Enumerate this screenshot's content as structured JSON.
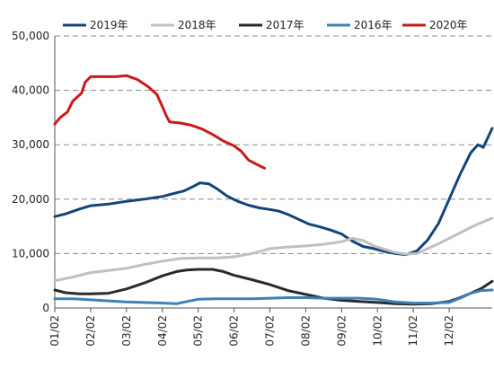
{
  "chart_data": {
    "type": "line",
    "title": "",
    "xlabel": "",
    "ylabel": "",
    "ylim": [
      0,
      50000
    ],
    "yticks": [
      "0",
      "10,000",
      "20,000",
      "30,000",
      "40,000",
      "50,000"
    ],
    "xticks": [
      "01/02",
      "02/02",
      "03/02",
      "04/02",
      "05/02",
      "06/02",
      "07/02",
      "08/02",
      "09/02",
      "10/02",
      "11/02",
      "12/02"
    ],
    "grid": "horizontal-dashed",
    "legend_position": "top",
    "series": [
      {
        "name": "2019年",
        "color": "#14457a",
        "points": [
          [
            0,
            16800
          ],
          [
            0.3,
            17300
          ],
          [
            0.7,
            18200
          ],
          [
            1.0,
            18800
          ],
          [
            1.5,
            19100
          ],
          [
            2.0,
            19600
          ],
          [
            2.5,
            20000
          ],
          [
            3.0,
            20500
          ],
          [
            3.3,
            21000
          ],
          [
            3.6,
            21500
          ],
          [
            3.85,
            22300
          ],
          [
            4.05,
            23000
          ],
          [
            4.3,
            22800
          ],
          [
            4.55,
            21800
          ],
          [
            4.8,
            20600
          ],
          [
            5.1,
            19600
          ],
          [
            5.4,
            18900
          ],
          [
            5.7,
            18400
          ],
          [
            6.0,
            18100
          ],
          [
            6.25,
            17800
          ],
          [
            6.5,
            17200
          ],
          [
            6.8,
            16300
          ],
          [
            7.1,
            15400
          ],
          [
            7.4,
            14900
          ],
          [
            7.7,
            14300
          ],
          [
            8.0,
            13600
          ],
          [
            8.3,
            12300
          ],
          [
            8.6,
            11300
          ],
          [
            8.9,
            10900
          ],
          [
            9.2,
            10400
          ],
          [
            9.5,
            10000
          ],
          [
            9.8,
            9800
          ],
          [
            10.1,
            10500
          ],
          [
            10.4,
            12500
          ],
          [
            10.7,
            15500
          ],
          [
            11.0,
            20000
          ],
          [
            11.3,
            24500
          ],
          [
            11.6,
            28500
          ],
          [
            11.8,
            30000
          ],
          [
            11.95,
            29500
          ],
          [
            12.2,
            33000
          ]
        ]
      },
      {
        "name": "2018年",
        "color": "#c0c0c0",
        "points": [
          [
            0,
            5000
          ],
          [
            0.5,
            5700
          ],
          [
            1.0,
            6500
          ],
          [
            1.5,
            6900
          ],
          [
            2.0,
            7300
          ],
          [
            2.5,
            8000
          ],
          [
            3.0,
            8600
          ],
          [
            3.5,
            9100
          ],
          [
            4.0,
            9200
          ],
          [
            4.5,
            9200
          ],
          [
            5.0,
            9400
          ],
          [
            5.5,
            10000
          ],
          [
            6.0,
            10900
          ],
          [
            6.5,
            11200
          ],
          [
            7.0,
            11400
          ],
          [
            7.5,
            11700
          ],
          [
            8.0,
            12200
          ],
          [
            8.3,
            12800
          ],
          [
            8.6,
            12400
          ],
          [
            8.9,
            11400
          ],
          [
            9.2,
            10800
          ],
          [
            9.5,
            10200
          ],
          [
            9.8,
            9900
          ],
          [
            10.1,
            10000
          ],
          [
            10.4,
            10900
          ],
          [
            10.7,
            11800
          ],
          [
            11.0,
            12800
          ],
          [
            11.3,
            13800
          ],
          [
            11.6,
            14800
          ],
          [
            11.9,
            15700
          ],
          [
            12.2,
            16500
          ]
        ]
      },
      {
        "name": "2017年",
        "color": "#2b2b2b",
        "points": [
          [
            0,
            3300
          ],
          [
            0.3,
            2800
          ],
          [
            0.7,
            2600
          ],
          [
            1.0,
            2600
          ],
          [
            1.5,
            2700
          ],
          [
            2.0,
            3500
          ],
          [
            2.5,
            4600
          ],
          [
            3.0,
            5900
          ],
          [
            3.4,
            6700
          ],
          [
            3.7,
            7000
          ],
          [
            4.0,
            7100
          ],
          [
            4.4,
            7100
          ],
          [
            4.7,
            6700
          ],
          [
            5.0,
            6000
          ],
          [
            5.5,
            5200
          ],
          [
            6.0,
            4300
          ],
          [
            6.5,
            3200
          ],
          [
            7.0,
            2500
          ],
          [
            7.5,
            1800
          ],
          [
            8.0,
            1400
          ],
          [
            8.5,
            1200
          ],
          [
            9.0,
            1000
          ],
          [
            9.5,
            800
          ],
          [
            10.0,
            700
          ],
          [
            10.5,
            800
          ],
          [
            11.0,
            1200
          ],
          [
            11.3,
            1900
          ],
          [
            11.6,
            2700
          ],
          [
            11.9,
            3600
          ],
          [
            12.2,
            4900
          ]
        ]
      },
      {
        "name": "2016年",
        "color": "#3f80b6",
        "points": [
          [
            0,
            1700
          ],
          [
            0.5,
            1700
          ],
          [
            1.0,
            1500
          ],
          [
            1.5,
            1300
          ],
          [
            2.0,
            1100
          ],
          [
            2.5,
            1000
          ],
          [
            3.0,
            900
          ],
          [
            3.4,
            800
          ],
          [
            3.7,
            1200
          ],
          [
            4.0,
            1600
          ],
          [
            4.5,
            1700
          ],
          [
            5.0,
            1700
          ],
          [
            5.5,
            1700
          ],
          [
            6.0,
            1800
          ],
          [
            6.5,
            1900
          ],
          [
            7.0,
            1900
          ],
          [
            7.5,
            1800
          ],
          [
            8.0,
            1800
          ],
          [
            8.5,
            1800
          ],
          [
            9.0,
            1600
          ],
          [
            9.5,
            1100
          ],
          [
            10.0,
            900
          ],
          [
            10.5,
            900
          ],
          [
            11.0,
            1000
          ],
          [
            11.3,
            1800
          ],
          [
            11.6,
            2700
          ],
          [
            11.9,
            3200
          ],
          [
            12.2,
            3300
          ]
        ]
      },
      {
        "name": "2020年",
        "color": "#cc1a1a",
        "points": [
          [
            0,
            33800
          ],
          [
            0.15,
            35000
          ],
          [
            0.35,
            36000
          ],
          [
            0.5,
            38000
          ],
          [
            0.75,
            39500
          ],
          [
            0.85,
            41500
          ],
          [
            1.0,
            42500
          ],
          [
            1.3,
            42500
          ],
          [
            1.7,
            42500
          ],
          [
            2.0,
            42700
          ],
          [
            2.3,
            42000
          ],
          [
            2.6,
            40700
          ],
          [
            2.85,
            39200
          ],
          [
            3.0,
            37000
          ],
          [
            3.1,
            35500
          ],
          [
            3.2,
            34200
          ],
          [
            3.5,
            34000
          ],
          [
            3.8,
            33600
          ],
          [
            4.1,
            32900
          ],
          [
            4.4,
            31900
          ],
          [
            4.7,
            30700
          ],
          [
            5.0,
            29800
          ],
          [
            5.2,
            28800
          ],
          [
            5.4,
            27200
          ],
          [
            5.6,
            26500
          ],
          [
            5.75,
            26000
          ],
          [
            5.85,
            25700
          ]
        ]
      }
    ]
  }
}
